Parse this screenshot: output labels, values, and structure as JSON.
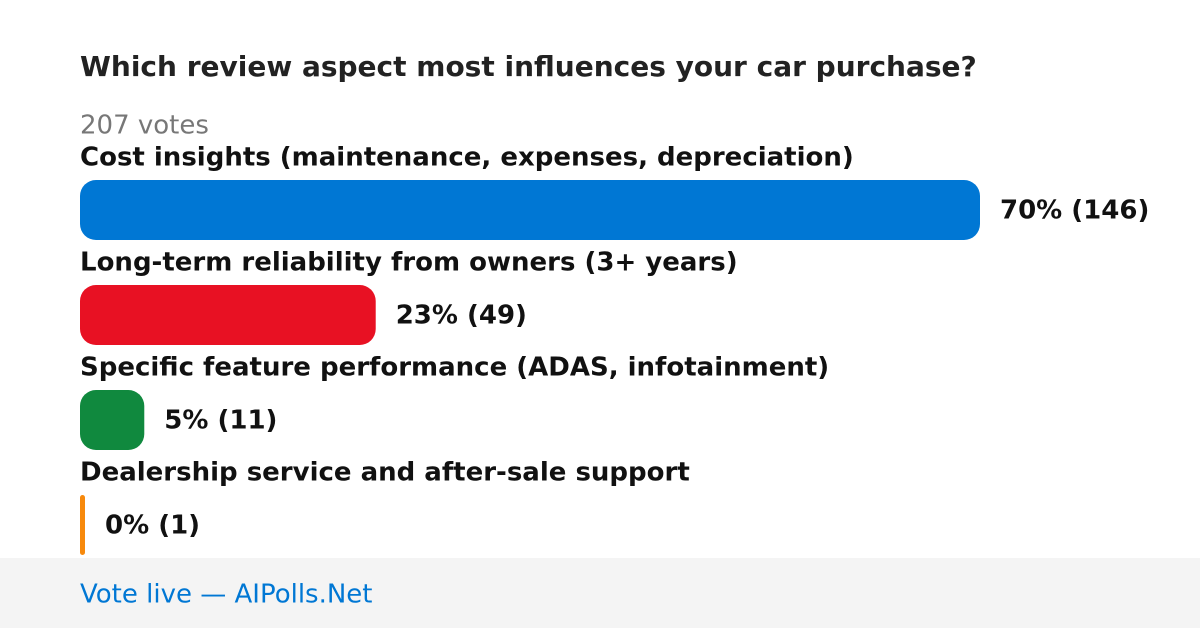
{
  "chart_data": {
    "type": "bar",
    "orientation": "horizontal",
    "title": "Which review aspect most influences your car purchase?",
    "subtitle": "207 votes",
    "categories": [
      "Cost insights (maintenance, expenses, depreciation)",
      "Long-term reliability from owners (3+ years)",
      "Specific feature performance (ADAS, infotainment)",
      "Dealership service and after-sale support"
    ],
    "values": [
      70,
      23,
      5,
      0
    ],
    "value_labels": [
      "70% (146)",
      "23% (49)",
      "5% (11)",
      "0% (1)"
    ],
    "colors": [
      "#0077d4",
      "#e81123",
      "#10893e",
      "#f7890c"
    ],
    "footer": "Vote live — AIPolls.Net"
  }
}
